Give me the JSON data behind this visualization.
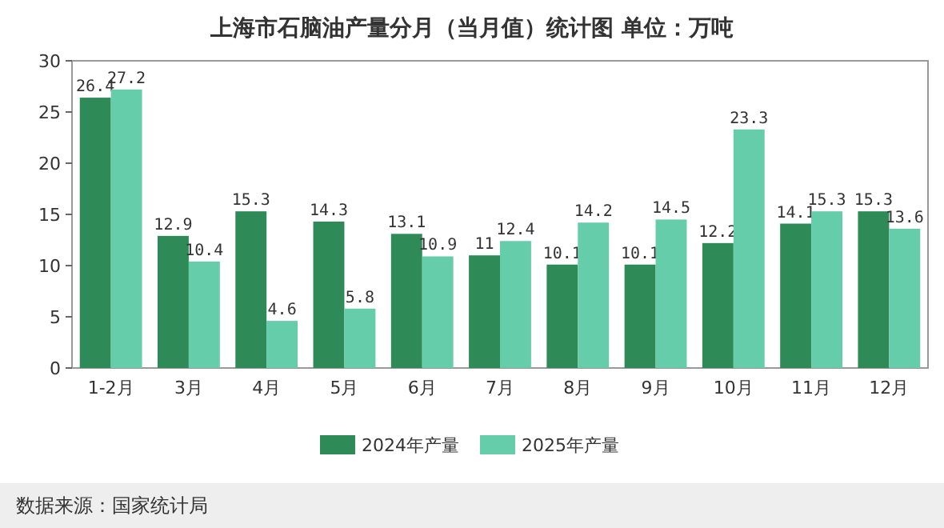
{
  "chart_data": {
    "type": "bar",
    "title": "上海市石脑油产量分月（当月值）统计图 单位：万吨",
    "categories": [
      "1-2月",
      "3月",
      "4月",
      "5月",
      "6月",
      "7月",
      "8月",
      "9月",
      "10月",
      "11月",
      "12月"
    ],
    "series": [
      {
        "name": "2024年产量",
        "color": "#2e8b57",
        "values": [
          26.4,
          12.9,
          15.3,
          14.3,
          13.1,
          11,
          10.1,
          10.1,
          12.2,
          14.1,
          15.3
        ]
      },
      {
        "name": "2025年产量",
        "color": "#66cdaa",
        "values": [
          27.2,
          10.4,
          4.6,
          5.8,
          10.9,
          12.4,
          14.2,
          14.5,
          23.3,
          15.3,
          13.6
        ]
      }
    ],
    "ylim": [
      0,
      30
    ],
    "yticks": [
      0,
      5,
      10,
      15,
      20,
      25,
      30
    ],
    "data_labels": true,
    "legend": "bottom",
    "grid": false,
    "annotations": [
      "数据来源：国家统计局"
    ]
  }
}
